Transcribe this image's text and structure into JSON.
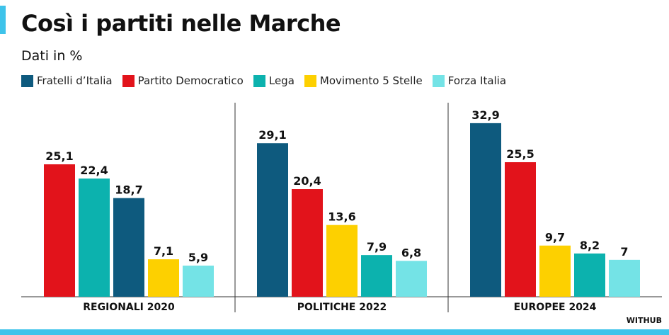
{
  "title": "Così i partiti nelle Marche",
  "subtitle": "Dati in %",
  "credit": "WITHUB",
  "colors": {
    "fratelli": "#0e5a7e",
    "pd": "#e2131b",
    "lega": "#0cb2ae",
    "m5s": "#fdd000",
    "forza": "#74e3e6",
    "accent": "#3ec3ea"
  },
  "legend": [
    {
      "key": "fratelli",
      "label": "Fratelli d’Italia"
    },
    {
      "key": "pd",
      "label": "Partito Democratico"
    },
    {
      "key": "lega",
      "label": "Lega"
    },
    {
      "key": "m5s",
      "label": "Movimento 5 Stelle"
    },
    {
      "key": "forza",
      "label": "Forza Italia"
    }
  ],
  "chart_data": {
    "type": "bar",
    "title": "Così i partiti nelle Marche",
    "ylabel": "Dati in %",
    "ylim": [
      0,
      35
    ],
    "grid": false,
    "legend_position": "top-left",
    "groups": [
      {
        "label": "REGIONALI 2020",
        "bars": [
          {
            "party": "pd",
            "value": 25.1,
            "label": "25,1"
          },
          {
            "party": "lega",
            "value": 22.4,
            "label": "22,4"
          },
          {
            "party": "fratelli",
            "value": 18.7,
            "label": "18,7"
          },
          {
            "party": "m5s",
            "value": 7.1,
            "label": "7,1"
          },
          {
            "party": "forza",
            "value": 5.9,
            "label": "5,9"
          }
        ]
      },
      {
        "label": "POLITICHE 2022",
        "bars": [
          {
            "party": "fratelli",
            "value": 29.1,
            "label": "29,1"
          },
          {
            "party": "pd",
            "value": 20.4,
            "label": "20,4"
          },
          {
            "party": "m5s",
            "value": 13.6,
            "label": "13,6"
          },
          {
            "party": "lega",
            "value": 7.9,
            "label": "7,9"
          },
          {
            "party": "forza",
            "value": 6.8,
            "label": "6,8"
          }
        ]
      },
      {
        "label": "EUROPEE 2024",
        "bars": [
          {
            "party": "fratelli",
            "value": 32.9,
            "label": "32,9"
          },
          {
            "party": "pd",
            "value": 25.5,
            "label": "25,5"
          },
          {
            "party": "m5s",
            "value": 9.7,
            "label": "9,7"
          },
          {
            "party": "lega",
            "value": 8.2,
            "label": "8,2"
          },
          {
            "party": "forza",
            "value": 7,
            "label": "7"
          }
        ]
      }
    ]
  }
}
